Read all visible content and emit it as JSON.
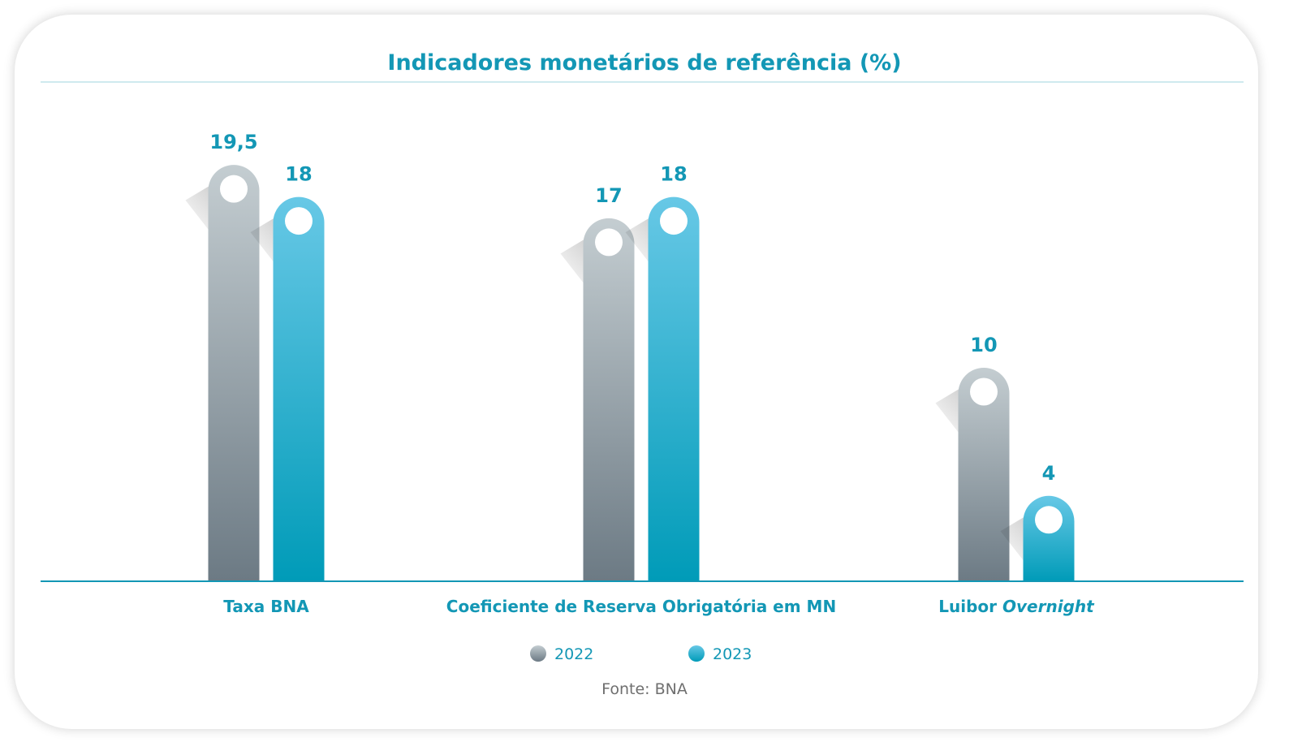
{
  "chart_data": {
    "type": "bar",
    "title": "Indicadores monetários de referência (%)",
    "categories": [
      "Taxa BNA",
      "Coeficiente de Reserva Obrigatória em MN",
      "Luibor Overnight"
    ],
    "category_parts": [
      {
        "plain": "Taxa BNA",
        "italic": ""
      },
      {
        "plain": "Coeficiente de Reserva Obrigatória em MN",
        "italic": ""
      },
      {
        "plain": "Luibor ",
        "italic": "Overnight"
      }
    ],
    "series": [
      {
        "name": "2022",
        "values": [
          19.5,
          17,
          10
        ],
        "value_labels": [
          "19,5",
          "17",
          "10"
        ],
        "color": "#8e9aa2"
      },
      {
        "name": "2023",
        "values": [
          18,
          18,
          4
        ],
        "value_labels": [
          "18",
          "18",
          "4"
        ],
        "color": "#1aa3c6"
      }
    ],
    "ylim": [
      0,
      22
    ],
    "grid": false,
    "legend_position": "bottom",
    "source": "Fonte: BNA"
  },
  "colors": {
    "accent": "#1397b5",
    "axis": "#1397b5",
    "series_2022_top": "#c4cdd1",
    "series_2022_bottom": "#6c7a84",
    "series_2023_top": "#67c8e6",
    "series_2023_bottom": "#009bb8"
  }
}
